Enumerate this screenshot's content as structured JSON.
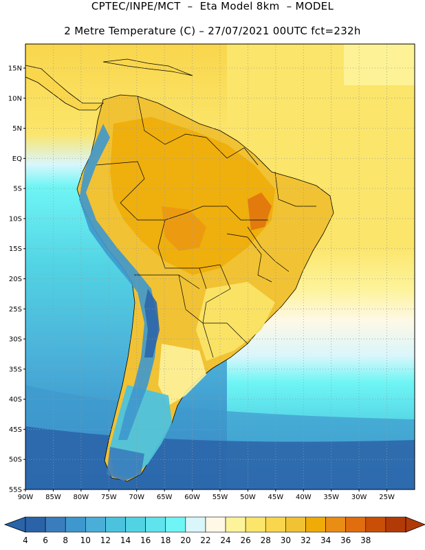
{
  "header": {
    "line1": "CPTEC/INPE/MCT  –  Eta Model 8km  – MODEL",
    "line2": "2 Metre Temperature (C) – 27/07/2021 00UTC fct=232h"
  },
  "map": {
    "lat_labels": [
      "15N",
      "10N",
      "5N",
      "EQ",
      "5S",
      "10S",
      "15S",
      "20S",
      "25S",
      "30S",
      "35S",
      "40S",
      "45S",
      "50S",
      "55S"
    ],
    "lon_labels": [
      "90W",
      "85W",
      "80W",
      "75W",
      "70W",
      "65W",
      "60W",
      "55W",
      "50W",
      "45W",
      "40W",
      "35W",
      "30W",
      "25W"
    ],
    "lon_range": [
      -90,
      -20
    ],
    "lat_range": [
      -55,
      19
    ]
  },
  "colorbar": {
    "labels": [
      "4",
      "6",
      "8",
      "10",
      "12",
      "14",
      "16",
      "18",
      "20",
      "22",
      "24",
      "26",
      "28",
      "30",
      "32",
      "34",
      "36",
      "38"
    ],
    "colors": [
      "#2a63a8",
      "#3a7dbd",
      "#3e98cd",
      "#4aaed8",
      "#4cc3de",
      "#52d3e4",
      "#5fe3ec",
      "#6ff5f5",
      "#d9f6fb",
      "#fff8e6",
      "#fdf39a",
      "#fbe56a",
      "#f9d64c",
      "#f1c233",
      "#efab07",
      "#ea8d14",
      "#e06d0e",
      "#c94f06",
      "#b23a07"
    ],
    "under_color": "#2a63a8",
    "over_color": "#b23a07"
  }
}
